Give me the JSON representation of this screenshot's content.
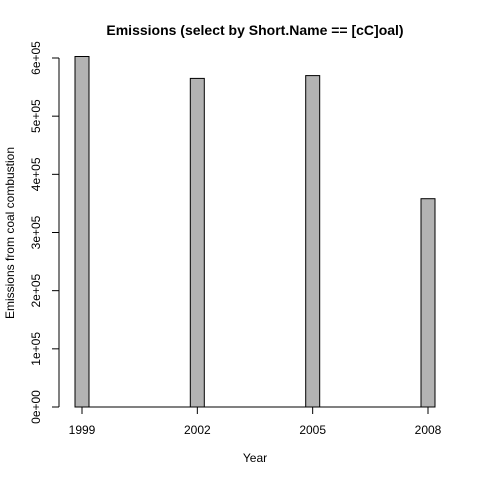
{
  "chart_data": {
    "type": "bar",
    "title": "Emissions (select by Short.Name == [cC]oal)",
    "xlabel": "Year",
    "ylabel": "Emissions from coal combustion",
    "categories": [
      "1999",
      "2002",
      "2005",
      "2008"
    ],
    "x": [
      1999,
      2002,
      2005,
      2008
    ],
    "values": [
      602600,
      564900,
      569700,
      358100
    ],
    "ylim": [
      0,
      600000
    ],
    "yticks": [
      0,
      100000,
      200000,
      300000,
      400000,
      500000,
      600000
    ],
    "ytick_labels": [
      "0e+00",
      "1e+05",
      "2e+05",
      "3e+05",
      "4e+05",
      "5e+05",
      "6e+05"
    ],
    "grid": false,
    "legend": "none",
    "bar_color": "#b3b3b3"
  }
}
